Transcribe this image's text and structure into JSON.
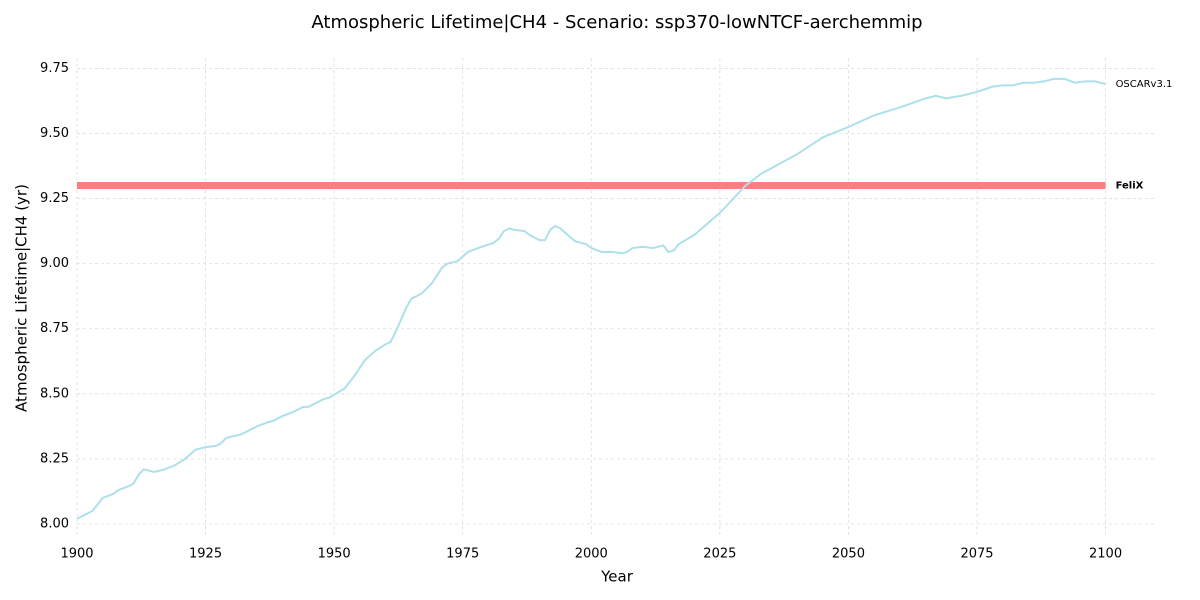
{
  "chart_data": {
    "type": "line",
    "title": "Atmospheric Lifetime|CH4 - Scenario: ssp370-lowNTCF-aerchemmip",
    "x_label": "Year",
    "y_label": "Atmospheric Lifetime|CH4 (yr)",
    "xlim": [
      1900,
      2110
    ],
    "ylim": [
      7.95,
      9.79
    ],
    "xticks": [
      1900,
      1925,
      1950,
      1975,
      2000,
      2025,
      2050,
      2075,
      2100
    ],
    "yticks": [
      {
        "value": 8,
        "label": "8.00"
      },
      8.25,
      {
        "value": 8.5,
        "label": "8.50"
      },
      8.75,
      {
        "value": 9,
        "label": "9.00"
      },
      9.25,
      {
        "value": 9.5,
        "label": "9.50"
      },
      9.75
    ],
    "grid": true,
    "series": [
      {
        "name": "FeliX",
        "color": "#f77f7f",
        "x": [
          1900,
          2100
        ],
        "values": [
          9.3,
          9.3
        ]
      },
      {
        "name": "OSCARv3.1",
        "color": "#ade0ea",
        "x": [
          1900,
          1903,
          1905,
          1907,
          1908,
          1910,
          1911,
          1912,
          1913,
          1915,
          1917,
          1919,
          1921,
          1923,
          1925,
          1927,
          1928,
          1929,
          1932,
          1935,
          1937,
          1938,
          1940,
          1942,
          1944,
          1945,
          1946,
          1948,
          1949,
          1952,
          1954,
          1956,
          1958,
          1960,
          1961,
          1962,
          1964,
          1965,
          1967,
          1969,
          1971,
          1972,
          1974,
          1976,
          1978,
          1981,
          1982,
          1983,
          1984,
          1985,
          1987,
          1988,
          1990,
          1991,
          1992,
          1993,
          1994,
          1996,
          1997,
          1999,
          2000,
          2002,
          2004,
          2006,
          2007,
          2008,
          2010,
          2012,
          2014,
          2015,
          2016,
          2017,
          2020,
          2025,
          2030,
          2033,
          2040,
          2045,
          2050,
          2055,
          2060,
          2065,
          2067,
          2069,
          2072,
          2075,
          2078,
          2080,
          2082,
          2084,
          2086,
          2088,
          2090,
          2092,
          2094,
          2096,
          2098,
          2100
        ],
        "values": [
          8.02,
          8.05,
          8.1,
          8.115,
          8.13,
          8.145,
          8.155,
          8.19,
          8.21,
          8.2,
          8.21,
          8.225,
          8.25,
          8.285,
          8.295,
          8.3,
          8.31,
          8.33,
          8.345,
          8.375,
          8.39,
          8.395,
          8.415,
          8.43,
          8.45,
          8.45,
          8.46,
          8.48,
          8.485,
          8.52,
          8.57,
          8.63,
          8.665,
          8.69,
          8.7,
          8.74,
          8.83,
          8.865,
          8.885,
          8.925,
          8.985,
          9.0,
          9.01,
          9.045,
          9.06,
          9.08,
          9.095,
          9.125,
          9.135,
          9.13,
          9.125,
          9.11,
          9.09,
          9.09,
          9.13,
          9.145,
          9.135,
          9.1,
          9.085,
          9.075,
          9.06,
          9.045,
          9.045,
          9.04,
          9.045,
          9.06,
          9.065,
          9.06,
          9.07,
          9.045,
          9.05,
          9.075,
          9.11,
          9.195,
          9.3,
          9.345,
          9.42,
          9.485,
          9.525,
          9.57,
          9.6,
          9.635,
          9.645,
          9.635,
          9.645,
          9.66,
          9.68,
          9.685,
          9.685,
          9.695,
          9.695,
          9.7,
          9.71,
          9.71,
          9.695,
          9.7,
          9.7,
          9.69
        ]
      }
    ]
  }
}
